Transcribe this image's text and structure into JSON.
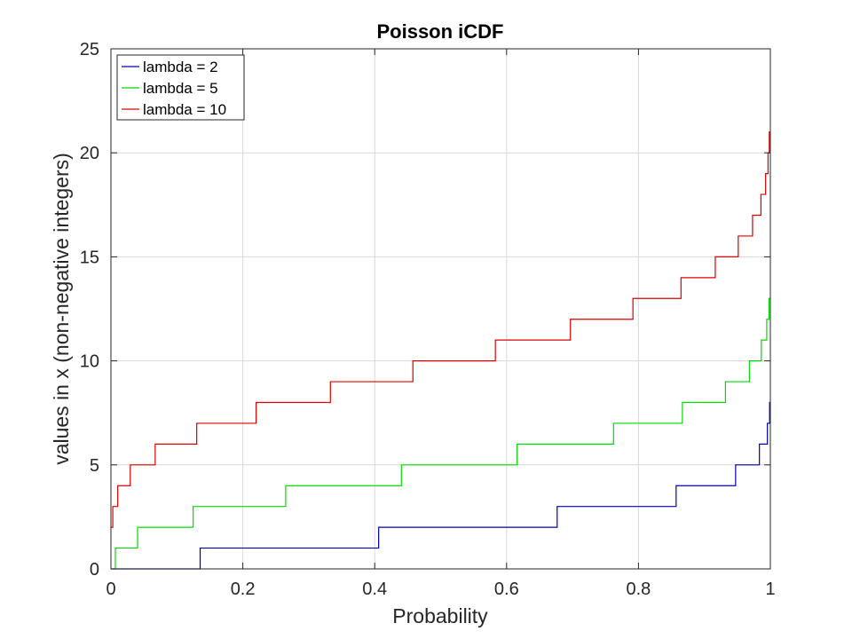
{
  "chart_data": {
    "type": "line",
    "title": "Poisson iCDF",
    "xlabel": "Probability",
    "ylabel": "values in x (non-negative integers)",
    "xlim": [
      0,
      1
    ],
    "ylim": [
      0,
      25
    ],
    "xticks": [
      "0",
      "0.2",
      "0.4",
      "0.6",
      "0.8",
      "1"
    ],
    "yticks": [
      "0",
      "5",
      "10",
      "15",
      "20",
      "25"
    ],
    "grid": true,
    "legend_position": "top-left",
    "step": true,
    "series": [
      {
        "name": "lambda = 2",
        "color": "#0000b4",
        "x": [
          0,
          0.1353,
          0.406,
          0.6767,
          0.8571,
          0.9473,
          0.9834,
          0.9955,
          0.9989,
          1.0
        ],
        "y": [
          0,
          1,
          2,
          3,
          4,
          5,
          6,
          7,
          8,
          8
        ]
      },
      {
        "name": "lambda = 5",
        "color": "#00dc00",
        "x": [
          0,
          0.0067,
          0.0404,
          0.1247,
          0.265,
          0.4405,
          0.616,
          0.7622,
          0.8666,
          0.9319,
          0.9682,
          0.9863,
          0.9945,
          0.998,
          1.0
        ],
        "y": [
          0,
          1,
          2,
          3,
          4,
          5,
          6,
          7,
          8,
          9,
          10,
          11,
          12,
          13,
          13
        ]
      },
      {
        "name": "lambda = 10",
        "color": "#dc0000",
        "x": [
          0,
          0.0028,
          0.0103,
          0.0293,
          0.0671,
          0.1301,
          0.2202,
          0.3328,
          0.4579,
          0.583,
          0.6968,
          0.7916,
          0.8645,
          0.9165,
          0.9513,
          0.973,
          0.9857,
          0.9928,
          0.9965,
          0.9984,
          1.0
        ],
        "y": [
          2,
          3,
          4,
          5,
          6,
          7,
          8,
          9,
          10,
          11,
          12,
          13,
          14,
          15,
          16,
          17,
          18,
          19,
          20,
          21,
          21
        ]
      }
    ]
  }
}
